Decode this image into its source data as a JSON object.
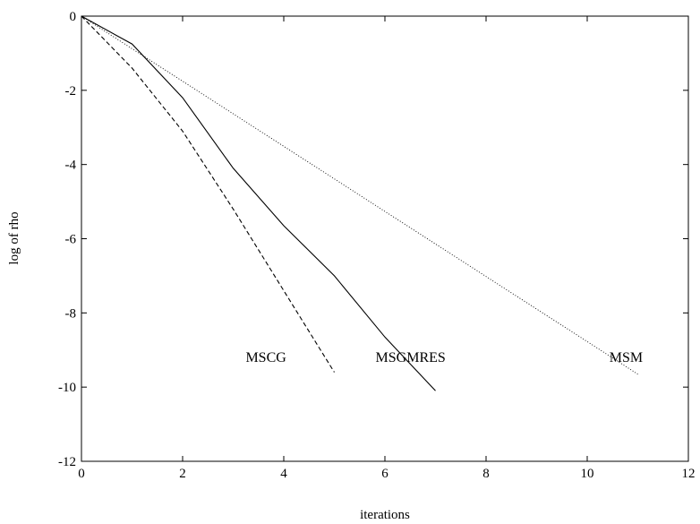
{
  "chart_data": {
    "type": "line",
    "title": "",
    "xlabel": "iterations",
    "ylabel": "log of rho",
    "xlim": [
      0,
      12
    ],
    "ylim": [
      -12,
      0
    ],
    "xticks": [
      "0",
      "2",
      "4",
      "6",
      "8",
      "10",
      "12"
    ],
    "yticks": [
      "0",
      "-2",
      "-4",
      "-6",
      "-8",
      "-10",
      "-12"
    ],
    "grid": false,
    "legend": "none",
    "series": [
      {
        "name": "MSCG",
        "style": "dashed",
        "color": "#000000",
        "x": [
          0,
          1,
          2,
          3,
          4,
          5
        ],
        "y": [
          0,
          -1.4,
          -3.1,
          -5.2,
          -7.4,
          -9.6
        ]
      },
      {
        "name": "MSGMRES",
        "style": "solid",
        "color": "#000000",
        "x": [
          0,
          1,
          2,
          3,
          4,
          5,
          6,
          7
        ],
        "y": [
          0,
          -0.75,
          -2.2,
          -4.1,
          -5.65,
          -7.0,
          -8.65,
          -10.1
        ]
      },
      {
        "name": "MSM",
        "style": "dotted",
        "color": "#000000",
        "x": [
          0,
          11
        ],
        "y": [
          0,
          -9.65
        ]
      }
    ],
    "annotations": [
      {
        "text": "MSCG",
        "x": 4.05,
        "y": -9.2
      },
      {
        "text": "MSGMRES",
        "x": 7.2,
        "y": -9.2
      },
      {
        "text": "MSM",
        "x": 11.1,
        "y": -9.2
      }
    ]
  }
}
